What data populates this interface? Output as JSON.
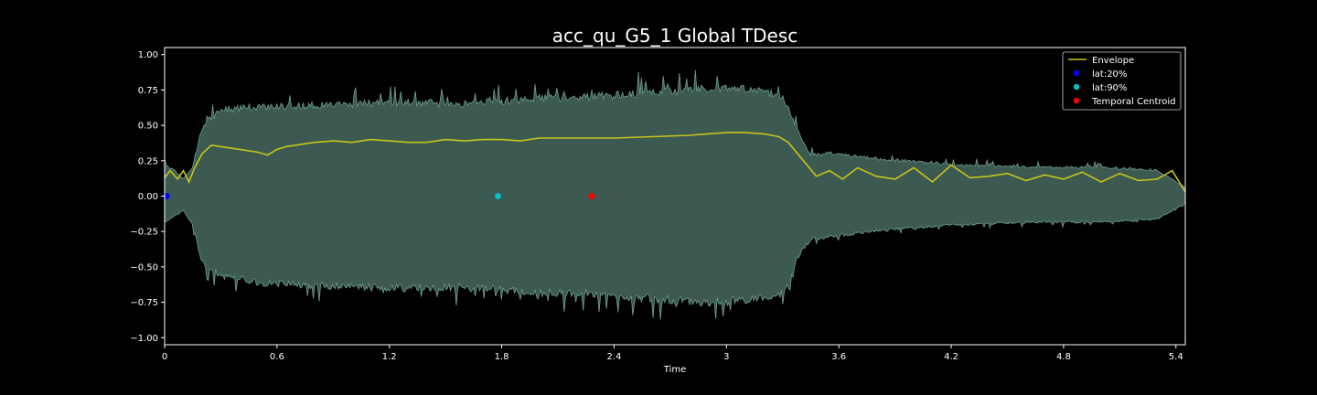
{
  "chart_data": {
    "type": "line",
    "title": "acc_qu_G5_1 Global TDesc",
    "xlabel": "Time",
    "ylabel": "",
    "xlim": [
      0,
      5.45
    ],
    "ylim": [
      -1.05,
      1.05
    ],
    "x_ticks": [
      0,
      0.6,
      1.2,
      1.8,
      2.4,
      3,
      3.6,
      4.2,
      4.8,
      5.4
    ],
    "x_tick_labels": [
      "0",
      "0.6",
      "1.2",
      "1.8",
      "2.4",
      "3",
      "3.6",
      "4.2",
      "4.8",
      "5.4"
    ],
    "y_ticks": [
      -1.0,
      -0.75,
      -0.5,
      -0.25,
      0.0,
      0.25,
      0.5,
      0.75,
      1.0
    ],
    "y_tick_labels": [
      "−1.00",
      "−0.75",
      "−0.50",
      "−0.25",
      "0.00",
      "0.25",
      "0.50",
      "0.75",
      "1.00"
    ],
    "grid": false,
    "legend_position": "top-right",
    "colors": {
      "background": "#000000",
      "waveform_fill": "#3d5a52",
      "waveform_outline": "#6e9e92",
      "envelope": "#c8c41a",
      "lat20": "#0000ff",
      "lat90": "#00bfbf",
      "centroid": "#ff0000",
      "axes": "#ffffff"
    },
    "waveform": {
      "name": "",
      "x": [
        0,
        0.05,
        0.1,
        0.15,
        0.2,
        0.3,
        0.5,
        0.8,
        1.0,
        1.3,
        1.6,
        1.8,
        2.0,
        2.3,
        2.6,
        2.9,
        3.1,
        3.3,
        3.38,
        3.45,
        3.55,
        3.8,
        4.2,
        4.6,
        5.0,
        5.3,
        5.45
      ],
      "upper": [
        0.22,
        0.18,
        0.12,
        0.2,
        0.48,
        0.6,
        0.62,
        0.63,
        0.64,
        0.65,
        0.64,
        0.66,
        0.68,
        0.69,
        0.72,
        0.75,
        0.74,
        0.7,
        0.45,
        0.28,
        0.3,
        0.26,
        0.22,
        0.2,
        0.2,
        0.18,
        0.06
      ],
      "lower": [
        -0.18,
        -0.14,
        -0.1,
        -0.2,
        -0.46,
        -0.55,
        -0.6,
        -0.62,
        -0.63,
        -0.64,
        -0.63,
        -0.65,
        -0.67,
        -0.68,
        -0.71,
        -0.74,
        -0.72,
        -0.68,
        -0.42,
        -0.3,
        -0.28,
        -0.24,
        -0.2,
        -0.18,
        -0.18,
        -0.16,
        -0.05
      ]
    },
    "series": [
      {
        "name": "Envelope",
        "x": [
          0,
          0.03,
          0.07,
          0.1,
          0.13,
          0.16,
          0.2,
          0.25,
          0.3,
          0.35,
          0.4,
          0.5,
          0.55,
          0.6,
          0.65,
          0.7,
          0.8,
          0.9,
          1.0,
          1.1,
          1.2,
          1.3,
          1.4,
          1.5,
          1.6,
          1.7,
          1.8,
          1.9,
          2.0,
          2.2,
          2.4,
          2.6,
          2.8,
          3.0,
          3.1,
          3.2,
          3.28,
          3.33,
          3.38,
          3.43,
          3.48,
          3.55,
          3.62,
          3.7,
          3.8,
          3.9,
          4.0,
          4.1,
          4.2,
          4.3,
          4.4,
          4.5,
          4.6,
          4.7,
          4.8,
          4.9,
          5.0,
          5.1,
          5.2,
          5.3,
          5.38,
          5.45
        ],
        "y": [
          0.13,
          0.18,
          0.12,
          0.18,
          0.1,
          0.2,
          0.3,
          0.36,
          0.35,
          0.34,
          0.33,
          0.31,
          0.29,
          0.33,
          0.35,
          0.36,
          0.38,
          0.39,
          0.38,
          0.4,
          0.39,
          0.38,
          0.38,
          0.4,
          0.39,
          0.4,
          0.4,
          0.39,
          0.41,
          0.41,
          0.41,
          0.42,
          0.43,
          0.45,
          0.45,
          0.44,
          0.42,
          0.38,
          0.3,
          0.22,
          0.14,
          0.18,
          0.12,
          0.2,
          0.14,
          0.12,
          0.2,
          0.1,
          0.22,
          0.13,
          0.14,
          0.16,
          0.11,
          0.15,
          0.12,
          0.17,
          0.1,
          0.16,
          0.11,
          0.12,
          0.18,
          0.03
        ]
      }
    ],
    "markers": [
      {
        "name": "lat:20%",
        "x": 0.01,
        "y": 0.0
      },
      {
        "name": "lat:90%",
        "x": 1.78,
        "y": 0.0
      },
      {
        "name": "Temporal Centroid",
        "x": 2.28,
        "y": 0.0
      }
    ]
  }
}
